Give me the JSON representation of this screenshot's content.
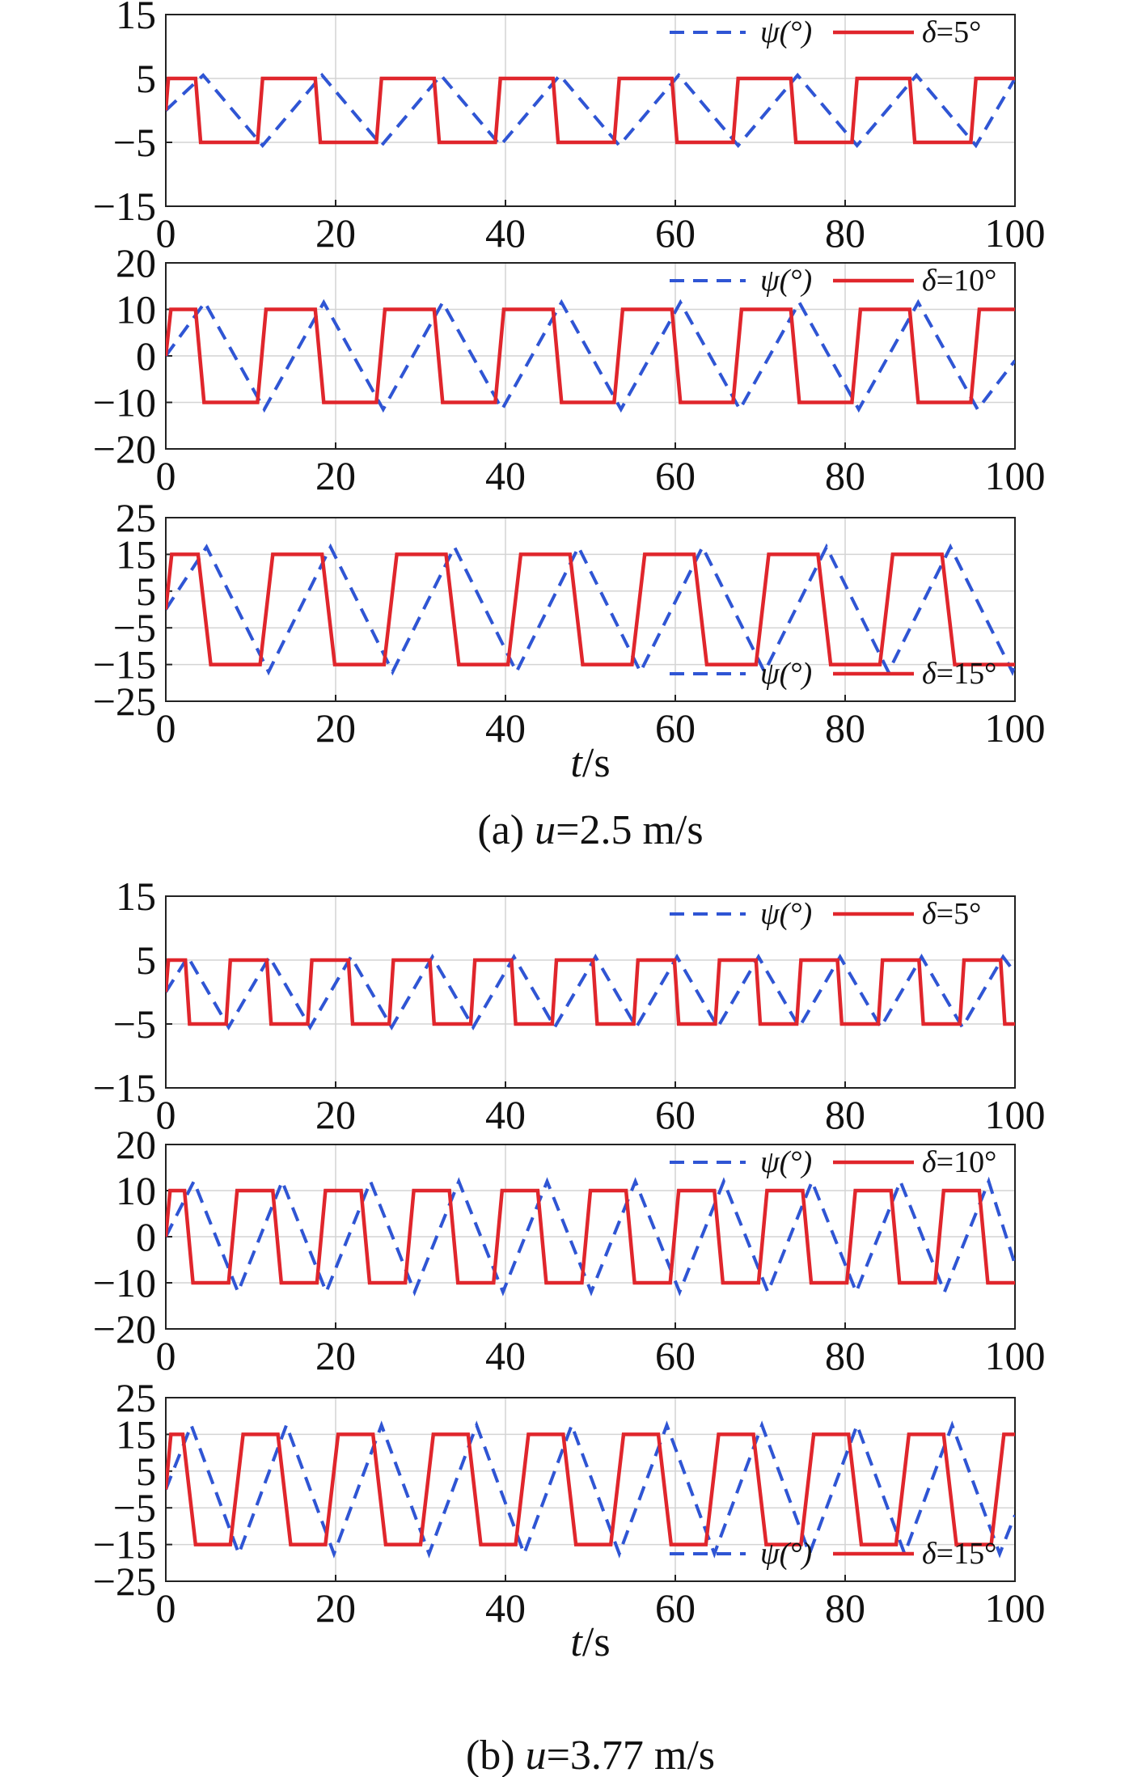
{
  "colors": {
    "psi": "#2f55d4",
    "delta": "#e0262c",
    "grid": "#d4d4d4",
    "axis": "#222222"
  },
  "figures": [
    {
      "caption": {
        "label": "(a) ",
        "var": "u",
        "rest": "=2.5 m/s"
      },
      "xlabel": {
        "var": "t",
        "rest": "/s"
      },
      "panels": [
        {
          "ylim": [
            -15,
            15
          ],
          "yticks": [
            15,
            5,
            -5,
            -15
          ],
          "ytick_labels": [
            "15",
            "5",
            "−5",
            "−15"
          ],
          "legend": {
            "psi_label": "ψ(°)",
            "delta_var": "δ",
            "delta_rest": "=5°",
            "position": "top-right"
          }
        },
        {
          "ylim": [
            -20,
            20
          ],
          "yticks": [
            20,
            10,
            0,
            -10,
            -20
          ],
          "ytick_labels": [
            "20",
            "10",
            "0",
            "−10",
            "−20"
          ],
          "legend": {
            "psi_label": "ψ(°)",
            "delta_var": "δ",
            "delta_rest": "=10°",
            "position": "top-right"
          }
        },
        {
          "ylim": [
            -25,
            25
          ],
          "yticks": [
            25,
            15,
            5,
            -5,
            -15,
            -25
          ],
          "ytick_labels": [
            "25",
            "15",
            "5",
            "−5",
            "−15",
            "−25"
          ],
          "legend": {
            "psi_label": "ψ(°)",
            "delta_var": "δ",
            "delta_rest": "=15°",
            "position": "bottom-right"
          }
        }
      ]
    },
    {
      "caption": {
        "label": "(b) ",
        "var": "u",
        "rest": "=3.77 m/s"
      },
      "xlabel": {
        "var": "t",
        "rest": "/s"
      },
      "panels": [
        {
          "ylim": [
            -15,
            15
          ],
          "yticks": [
            15,
            5,
            -5,
            -15
          ],
          "ytick_labels": [
            "15",
            "5",
            "−5",
            "−15"
          ],
          "legend": {
            "psi_label": "ψ(°)",
            "delta_var": "δ",
            "delta_rest": "=5°",
            "position": "top-right"
          }
        },
        {
          "ylim": [
            -20,
            20
          ],
          "yticks": [
            20,
            10,
            0,
            -10,
            -20
          ],
          "ytick_labels": [
            "20",
            "10",
            "0",
            "−10",
            "−20"
          ],
          "legend": {
            "psi_label": "ψ(°)",
            "delta_var": "δ",
            "delta_rest": "=10°",
            "position": "top-right"
          }
        },
        {
          "ylim": [
            -25,
            25
          ],
          "yticks": [
            25,
            15,
            5,
            -5,
            -15,
            -25
          ],
          "ytick_labels": [
            "25",
            "15",
            "5",
            "−5",
            "−15",
            "−25"
          ],
          "legend": {
            "psi_label": "ψ(°)",
            "delta_var": "δ",
            "delta_rest": "=15°",
            "position": "bottom-right"
          }
        }
      ]
    }
  ],
  "chart_data": [
    {
      "type": "line",
      "figure": "a",
      "xlim": [
        0,
        100
      ],
      "ylim": [
        -15,
        15
      ],
      "xticks": [
        0,
        20,
        40,
        60,
        80,
        100
      ],
      "grid": true,
      "legend_placement": "top-right",
      "series": [
        {
          "name": "ψ(°)",
          "style": "dashed",
          "x": [
            0,
            4.4,
            11.4,
            18.4,
            25.4,
            32.4,
            39.4,
            46.4,
            53.4,
            60.4,
            67.4,
            74.4,
            81.4,
            88.4,
            95.4,
            100
          ],
          "y": [
            0,
            5.5,
            -5.5,
            5.5,
            -5.5,
            5.5,
            -5.5,
            5.5,
            -5.5,
            5.5,
            -5.5,
            5.5,
            -5.5,
            5.5,
            -5.5,
            5
          ]
        },
        {
          "name": "δ=5°",
          "style": "solid",
          "x": [
            0,
            0.3,
            3.5,
            4.1,
            10.8,
            11.4,
            17.6,
            18.2,
            24.8,
            25.4,
            31.6,
            32.2,
            38.8,
            39.4,
            45.6,
            46.2,
            52.8,
            53.4,
            59.6,
            60.2,
            66.8,
            67.4,
            73.6,
            74.2,
            80.8,
            81.4,
            87.6,
            88.2,
            94.8,
            95.4,
            100
          ],
          "y": [
            0,
            5,
            5,
            -5,
            -5,
            5,
            5,
            -5,
            -5,
            5,
            5,
            -5,
            -5,
            5,
            5,
            -5,
            -5,
            5,
            5,
            -5,
            -5,
            5,
            5,
            -5,
            -5,
            5,
            5,
            -5,
            -5,
            5,
            5
          ]
        }
      ]
    },
    {
      "type": "line",
      "figure": "a",
      "xlim": [
        0,
        100
      ],
      "ylim": [
        -20,
        20
      ],
      "xticks": [
        0,
        20,
        40,
        60,
        80,
        100
      ],
      "grid": true,
      "legend_placement": "top-right",
      "series": [
        {
          "name": "ψ(°)",
          "style": "dashed",
          "x": [
            0,
            4.6,
            11.6,
            18.6,
            25.6,
            32.6,
            39.6,
            46.6,
            53.6,
            60.6,
            67.6,
            74.6,
            81.6,
            88.6,
            95.6,
            100
          ],
          "y": [
            0,
            11.5,
            -11.5,
            11.5,
            -11.5,
            11.5,
            -11.5,
            11.5,
            -11.5,
            11.5,
            -11.5,
            11.5,
            -11.5,
            11.5,
            -11.5,
            -1
          ]
        },
        {
          "name": "δ=10°",
          "style": "solid",
          "x": [
            0,
            0.6,
            3.5,
            4.5,
            10.8,
            11.8,
            17.6,
            18.6,
            24.8,
            25.8,
            31.6,
            32.6,
            38.8,
            39.8,
            45.6,
            46.6,
            52.8,
            53.8,
            59.6,
            60.6,
            66.8,
            67.8,
            73.6,
            74.6,
            80.8,
            81.8,
            87.6,
            88.6,
            94.8,
            95.8,
            100
          ],
          "y": [
            0,
            10,
            10,
            -10,
            -10,
            10,
            10,
            -10,
            -10,
            10,
            10,
            -10,
            -10,
            10,
            10,
            -10,
            -10,
            10,
            10,
            -10,
            -10,
            10,
            10,
            -10,
            -10,
            10,
            10,
            -10,
            -10,
            10,
            10
          ]
        }
      ]
    },
    {
      "type": "line",
      "figure": "a",
      "xlim": [
        0,
        100
      ],
      "ylim": [
        -25,
        25
      ],
      "xticks": [
        0,
        20,
        40,
        60,
        80,
        100
      ],
      "grid": true,
      "legend_placement": "bottom-right",
      "series": [
        {
          "name": "ψ(°)",
          "style": "dashed",
          "x": [
            0,
            4.8,
            12.1,
            19.4,
            26.7,
            34.0,
            41.3,
            48.6,
            55.9,
            63.2,
            70.5,
            77.8,
            85.1,
            92.4,
            99.7,
            100
          ],
          "y": [
            0,
            17,
            -17,
            17,
            -17,
            17,
            -17,
            17,
            -17,
            17,
            -17,
            17,
            -17,
            17,
            -17,
            -15
          ]
        },
        {
          "name": "δ=15°",
          "style": "solid",
          "x": [
            0,
            0.7,
            3.8,
            5.3,
            11.1,
            12.6,
            18.4,
            19.9,
            25.7,
            27.2,
            33.0,
            34.5,
            40.3,
            41.8,
            47.6,
            49.1,
            54.9,
            56.4,
            62.2,
            63.7,
            69.5,
            71.0,
            76.8,
            78.3,
            84.1,
            85.6,
            91.4,
            92.9,
            98.7,
            100
          ],
          "y": [
            0,
            15,
            15,
            -15,
            -15,
            15,
            15,
            -15,
            -15,
            15,
            15,
            -15,
            -15,
            15,
            15,
            -15,
            -15,
            15,
            15,
            -15,
            -15,
            15,
            15,
            -15,
            -15,
            15,
            15,
            -15,
            -15,
            -15
          ]
        }
      ]
    },
    {
      "type": "line",
      "figure": "b",
      "xlim": [
        0,
        100
      ],
      "ylim": [
        -15,
        15
      ],
      "xticks": [
        0,
        20,
        40,
        60,
        80,
        100
      ],
      "grid": true,
      "legend_placement": "top-right",
      "series": [
        {
          "name": "ψ(°)",
          "style": "dashed",
          "x": [
            0,
            2.6,
            7.4,
            12.2,
            17.0,
            21.8,
            26.6,
            31.4,
            36.2,
            41.0,
            45.8,
            50.6,
            55.4,
            60.2,
            65.0,
            69.8,
            74.6,
            79.4,
            84.2,
            89.0,
            93.8,
            98.6,
            100
          ],
          "y": [
            0,
            5.5,
            -5.5,
            5.5,
            -5.5,
            5.5,
            -5.5,
            5.5,
            -5.5,
            5.5,
            -5.5,
            5.5,
            -5.5,
            5.5,
            -5.5,
            5.5,
            -5.5,
            5.5,
            -5.5,
            5.5,
            -5.5,
            5.5,
            3
          ]
        },
        {
          "name": "δ=5°",
          "style": "solid",
          "x": [
            0,
            0.3,
            2.3,
            2.8,
            7.1,
            7.6,
            11.9,
            12.4,
            16.7,
            17.2,
            21.5,
            22.0,
            26.3,
            26.8,
            31.1,
            31.6,
            35.9,
            36.4,
            40.7,
            41.2,
            45.5,
            46.0,
            50.3,
            50.8,
            55.1,
            55.6,
            59.9,
            60.4,
            64.7,
            65.2,
            69.5,
            70.0,
            74.3,
            74.8,
            79.1,
            79.6,
            83.9,
            84.4,
            88.7,
            89.2,
            93.5,
            94.0,
            98.3,
            98.8,
            100
          ],
          "y": [
            0,
            5,
            5,
            -5,
            -5,
            5,
            5,
            -5,
            -5,
            5,
            5,
            -5,
            -5,
            5,
            5,
            -5,
            -5,
            5,
            5,
            -5,
            -5,
            5,
            5,
            -5,
            -5,
            5,
            5,
            -5,
            -5,
            5,
            5,
            -5,
            -5,
            5,
            5,
            -5,
            -5,
            5,
            5,
            -5,
            -5,
            5,
            5,
            -5,
            -5
          ]
        }
      ]
    },
    {
      "type": "line",
      "figure": "b",
      "xlim": [
        0,
        100
      ],
      "ylim": [
        -20,
        20
      ],
      "xticks": [
        0,
        20,
        40,
        60,
        80,
        100
      ],
      "grid": true,
      "legend_placement": "top-right",
      "series": [
        {
          "name": "ψ(°)",
          "style": "dashed",
          "x": [
            0,
            3.3,
            8.5,
            13.7,
            18.9,
            24.1,
            29.3,
            34.5,
            39.7,
            44.9,
            50.1,
            55.3,
            60.5,
            65.7,
            70.9,
            76.1,
            81.3,
            86.5,
            91.7,
            96.9,
            100
          ],
          "y": [
            0,
            12,
            -12,
            12,
            -12,
            12,
            -12,
            12,
            -12,
            12,
            -12,
            12,
            -12,
            12,
            -12,
            12,
            -12,
            12,
            -12,
            12,
            -6
          ]
        },
        {
          "name": "δ=10°",
          "style": "solid",
          "x": [
            0,
            0.5,
            2.2,
            3.2,
            7.4,
            8.4,
            12.6,
            13.6,
            17.8,
            18.8,
            23.0,
            24.0,
            28.2,
            29.2,
            33.4,
            34.4,
            38.6,
            39.6,
            43.8,
            44.8,
            49.0,
            50.0,
            54.2,
            55.2,
            59.4,
            60.4,
            64.6,
            65.6,
            69.8,
            70.8,
            75.0,
            76.0,
            80.2,
            81.2,
            85.4,
            86.4,
            90.6,
            91.6,
            95.8,
            96.8,
            100
          ],
          "y": [
            0,
            10,
            10,
            -10,
            -10,
            10,
            10,
            -10,
            -10,
            10,
            10,
            -10,
            -10,
            10,
            10,
            -10,
            -10,
            10,
            10,
            -10,
            -10,
            10,
            10,
            -10,
            -10,
            10,
            10,
            -10,
            -10,
            10,
            10,
            -10,
            -10,
            10,
            10,
            -10,
            -10,
            10,
            10,
            -10,
            -10
          ]
        }
      ]
    },
    {
      "type": "line",
      "figure": "b",
      "xlim": [
        0,
        100
      ],
      "ylim": [
        -25,
        25
      ],
      "xticks": [
        0,
        20,
        40,
        60,
        80,
        100
      ],
      "grid": true,
      "legend_placement": "bottom-right",
      "series": [
        {
          "name": "ψ(°)",
          "style": "dashed",
          "x": [
            0,
            3.0,
            8.6,
            14.2,
            19.8,
            25.4,
            31.0,
            36.6,
            42.2,
            47.8,
            53.4,
            59.0,
            64.6,
            70.2,
            75.8,
            81.4,
            87.0,
            92.6,
            98.2,
            100
          ],
          "y": [
            0,
            17.5,
            -17.5,
            17.5,
            -17.5,
            17.5,
            -17.5,
            17.5,
            -17.5,
            17.5,
            -17.5,
            17.5,
            -17.5,
            17.5,
            -17.5,
            17.5,
            -17.5,
            17.5,
            -17.5,
            -7
          ]
        },
        {
          "name": "δ=15°",
          "style": "solid",
          "x": [
            0,
            0.6,
            2.0,
            3.5,
            7.6,
            9.1,
            13.2,
            14.7,
            18.8,
            20.3,
            24.4,
            25.9,
            30.0,
            31.5,
            35.6,
            37.1,
            41.2,
            42.7,
            46.8,
            48.3,
            52.4,
            53.9,
            58.0,
            59.5,
            63.6,
            65.1,
            69.2,
            70.7,
            74.8,
            76.3,
            80.4,
            81.9,
            86.0,
            87.5,
            91.6,
            93.1,
            97.2,
            98.7,
            100
          ],
          "y": [
            0,
            15,
            15,
            -15,
            -15,
            15,
            15,
            -15,
            -15,
            15,
            15,
            -15,
            -15,
            15,
            15,
            -15,
            -15,
            15,
            15,
            -15,
            -15,
            15,
            15,
            -15,
            -15,
            15,
            15,
            -15,
            -15,
            15,
            15,
            -15,
            -15,
            15,
            15,
            -15,
            -15,
            15,
            15
          ]
        }
      ]
    }
  ]
}
